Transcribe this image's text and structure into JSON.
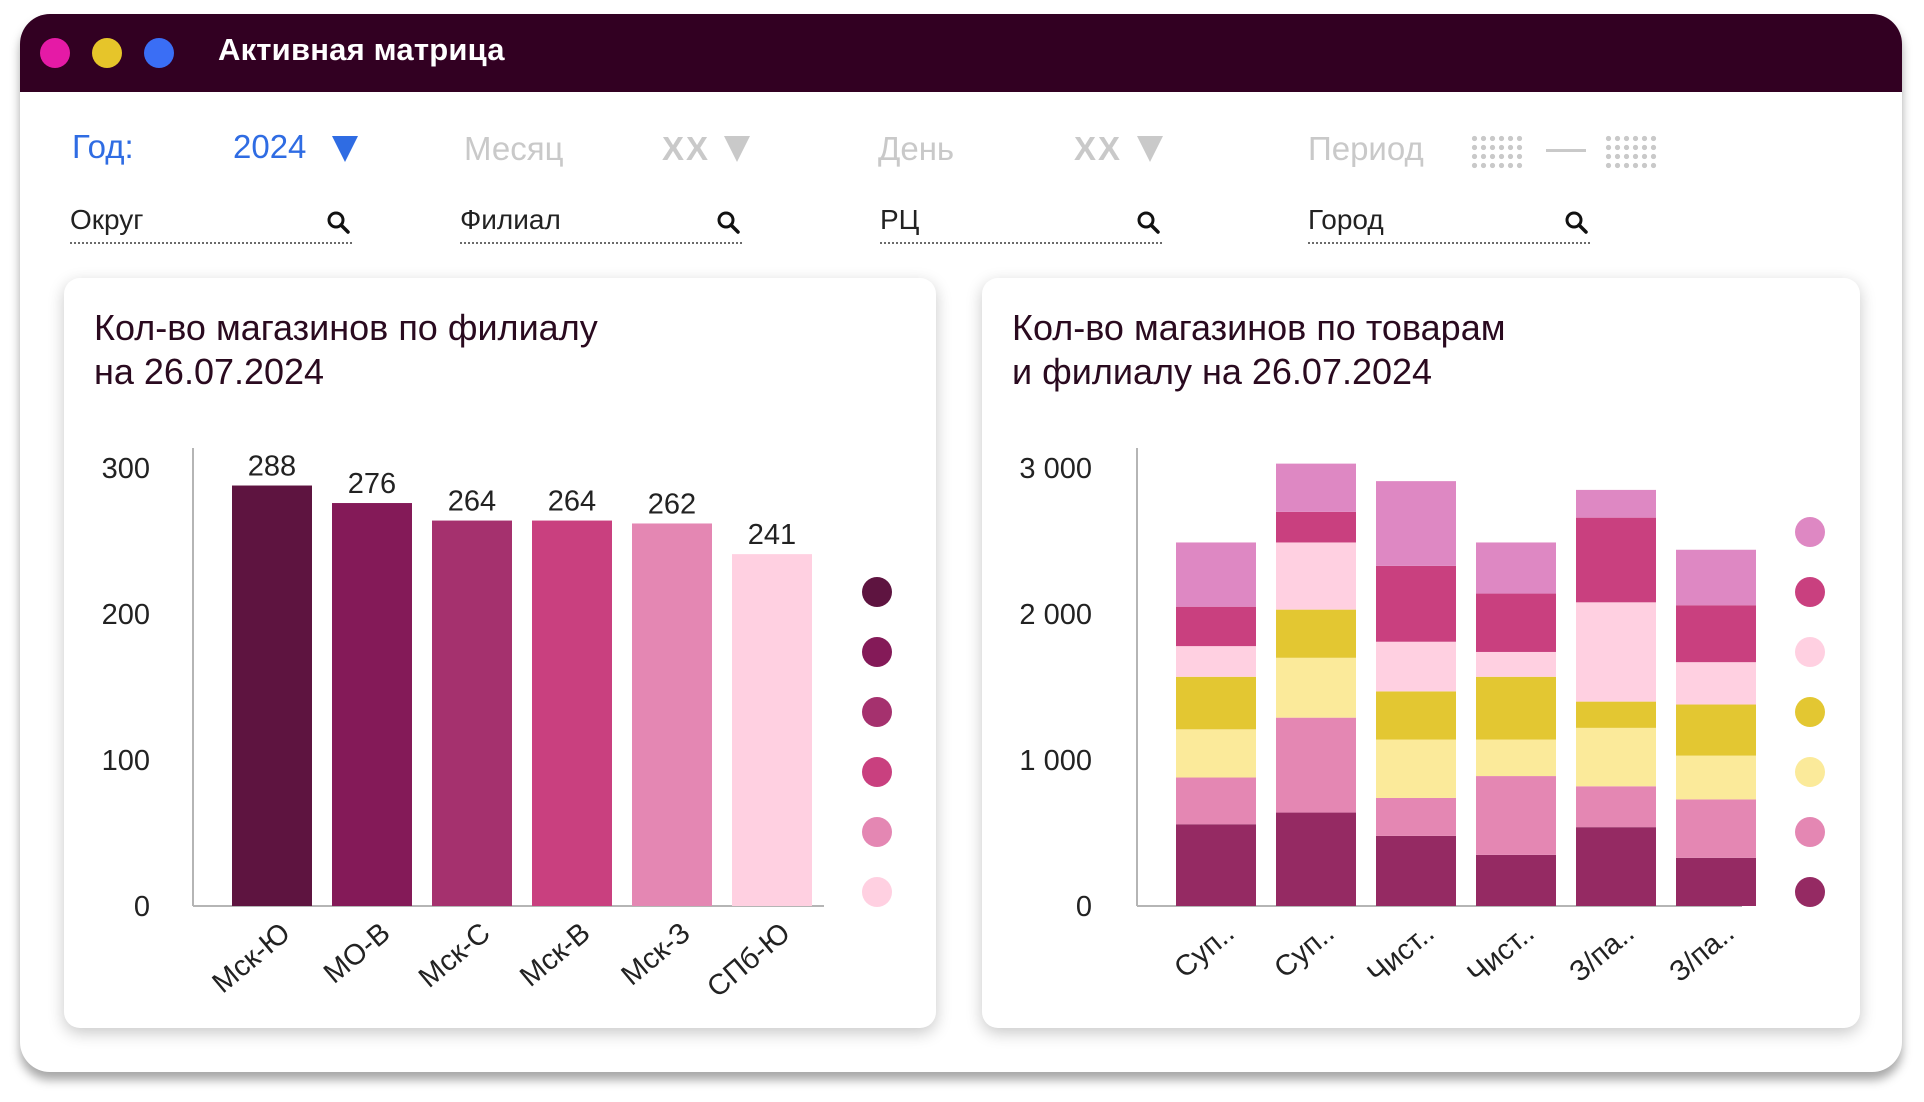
{
  "window": {
    "title": "Активная матрица"
  },
  "filters": {
    "year": {
      "label": "Год:",
      "value": "2024"
    },
    "month": {
      "label": "Месяц",
      "value": "ХХ"
    },
    "day": {
      "label": "День",
      "value": "ХХ"
    },
    "period": {
      "label": "Период"
    }
  },
  "search": {
    "district": "Округ",
    "branch": "Филиал",
    "dc": "РЦ",
    "city": "Город"
  },
  "colors": {
    "titlebar": "#320022",
    "accent_blue": "#2f6ce3",
    "inactive": "#c9c9c9"
  },
  "chart_data": [
    {
      "type": "bar",
      "title": "Кол-во магазинов по филиалу\nна 26.07.2024",
      "title_lines": [
        "Кол-во магазинов по филиалу",
        "на 26.07.2024"
      ],
      "categories": [
        "Мск-Ю",
        "МО-В",
        "Мск-С",
        "Мск-В",
        "Мск-З",
        "СПб-Ю"
      ],
      "values": [
        288,
        276,
        264,
        264,
        262,
        241
      ],
      "colors": [
        "#5e1440",
        "#841a58",
        "#a5316e",
        "#c9407f",
        "#e487b3",
        "#ffd0e1"
      ],
      "ylim": [
        0,
        300
      ],
      "yticks": [
        0,
        100,
        200,
        300
      ],
      "ytick_labels": [
        "0",
        "100",
        "200",
        "300"
      ],
      "legend": "right",
      "grid": false
    },
    {
      "type": "bar",
      "stacked": true,
      "title": "Кол-во магазинов по товарам\nи филиалу на 26.07.2024",
      "title_lines": [
        "Кол-во магазинов по товарам",
        "и филиалу на 26.07.2024"
      ],
      "categories": [
        "Суп..",
        "Суп..",
        "Чист..",
        "Чист..",
        "З/па..",
        "З/па.."
      ],
      "series": [
        {
          "values": [
            560,
            640,
            480,
            350,
            540,
            330
          ],
          "color": "#952a63"
        },
        {
          "values": [
            320,
            650,
            260,
            540,
            280,
            400
          ],
          "color": "#e487b3"
        },
        {
          "values": [
            330,
            410,
            400,
            250,
            400,
            300
          ],
          "color": "#fbea9a"
        },
        {
          "values": [
            360,
            330,
            330,
            430,
            180,
            350
          ],
          "color": "#e3c732"
        },
        {
          "values": [
            210,
            460,
            340,
            170,
            680,
            290
          ],
          "color": "#ffd0e1"
        },
        {
          "values": [
            270,
            210,
            520,
            400,
            580,
            390
          ],
          "color": "#c9407f"
        },
        {
          "values": [
            440,
            330,
            580,
            350,
            190,
            380
          ],
          "color": "#de88c3"
        }
      ],
      "legend_colors": [
        "#de88c3",
        "#c9407f",
        "#ffd0e1",
        "#e3c732",
        "#fbea9a",
        "#e487b3",
        "#952a63"
      ],
      "ylim": [
        0,
        3000
      ],
      "yticks": [
        0,
        1000,
        2000,
        3000
      ],
      "ytick_labels": [
        "0",
        "1 000",
        "2 000",
        "3 000"
      ],
      "legend": "right",
      "grid": false
    }
  ]
}
